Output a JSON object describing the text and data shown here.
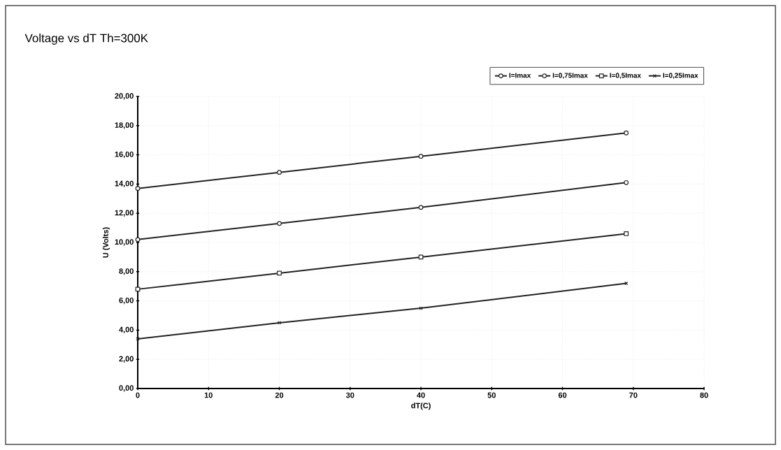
{
  "chart_data": {
    "type": "line",
    "title": "Voltage vs dT   Th=300K",
    "xlabel": "dT(C)",
    "ylabel": "U (Volts)",
    "x": [
      0,
      20,
      40,
      69
    ],
    "series": [
      {
        "name": "I=Imax",
        "color": "#222222",
        "marker": "circle",
        "values": [
          13.7,
          14.8,
          15.9,
          17.5
        ]
      },
      {
        "name": "I=0,75Imax",
        "color": "#222222",
        "marker": "circle",
        "values": [
          10.2,
          11.3,
          12.4,
          14.1
        ]
      },
      {
        "name": "I=0,5Imax",
        "color": "#222222",
        "marker": "square",
        "values": [
          6.8,
          7.9,
          9.0,
          10.6
        ]
      },
      {
        "name": "I=0,25Imax",
        "color": "#222222",
        "marker": "cross",
        "values": [
          3.4,
          4.5,
          5.5,
          7.2
        ]
      }
    ],
    "xlim": [
      0,
      80
    ],
    "xticks": [
      0,
      10,
      20,
      30,
      40,
      50,
      60,
      70,
      80
    ],
    "ylim": [
      0,
      20
    ],
    "yticks": [
      {
        "value": 0,
        "label": "0,00"
      },
      {
        "value": 2,
        "label": "2,00"
      },
      {
        "value": 4,
        "label": "4,00"
      },
      {
        "value": 6,
        "label": "6,00"
      },
      {
        "value": 8,
        "label": "8,00"
      },
      {
        "value": 10,
        "label": "10,00"
      },
      {
        "value": 12,
        "label": "12,00"
      },
      {
        "value": 14,
        "label": "14,00"
      },
      {
        "value": 16,
        "label": "16,00"
      },
      {
        "value": 18,
        "label": "18,00"
      },
      {
        "value": 20,
        "label": "20,00"
      }
    ],
    "grid": true,
    "legend": "top right",
    "line_style": "solid"
  }
}
